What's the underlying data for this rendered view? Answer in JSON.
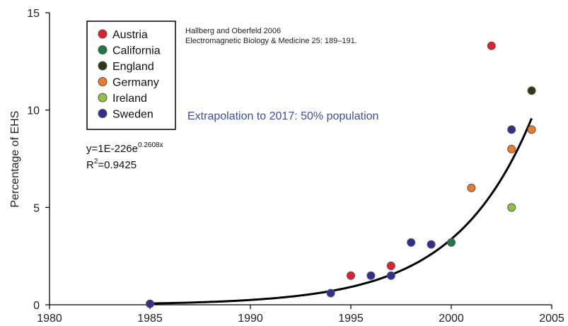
{
  "chart_data": {
    "type": "scatter",
    "ylabel": "Percentage of EHS",
    "xlim": [
      1980,
      2005
    ],
    "ylim": [
      0,
      15
    ],
    "xticks": [
      1980,
      1985,
      1990,
      1995,
      2000,
      2005
    ],
    "yticks": [
      0,
      5,
      10,
      15
    ],
    "grid": false,
    "legend_position": "top-left",
    "citation": {
      "line1": "Hallberg and Oberfeld 2006",
      "line2": "Electromagnetic Biology & Medicine 25: 189–191."
    },
    "annotation": "Extrapolation to 2017: 50% population",
    "fit": {
      "type": "exponential",
      "equation_prefix": "y=1E-226e",
      "equation_exponent": "0.2608x",
      "r2_label": "R",
      "r2_sup": "2",
      "r2_value": "=0.9425",
      "a": 1e-226,
      "b": 0.2608,
      "color": "#000000"
    },
    "series": [
      {
        "name": "Austria",
        "color": "#e4202e",
        "points": [
          [
            1995,
            1.5
          ],
          [
            1997,
            2.0
          ],
          [
            2002,
            13.3
          ]
        ]
      },
      {
        "name": "California",
        "color": "#1d7a45",
        "points": [
          [
            2000,
            3.2
          ]
        ]
      },
      {
        "name": "England",
        "color": "#2b3a16",
        "points": [
          [
            2004,
            11.0
          ]
        ]
      },
      {
        "name": "Germany",
        "color": "#f07a2a",
        "points": [
          [
            2001,
            6.0
          ],
          [
            2003,
            8.0
          ],
          [
            2004,
            9.0
          ]
        ]
      },
      {
        "name": "Ireland",
        "color": "#8cc63f",
        "points": [
          [
            2003,
            5.0
          ]
        ]
      },
      {
        "name": "Sweden",
        "color": "#2e3192",
        "points": [
          [
            1985,
            0.05
          ],
          [
            1994,
            0.6
          ],
          [
            1996,
            1.5
          ],
          [
            1997,
            1.5
          ],
          [
            1998,
            3.2
          ],
          [
            1999,
            3.1
          ],
          [
            2003,
            9.0
          ]
        ]
      }
    ]
  }
}
